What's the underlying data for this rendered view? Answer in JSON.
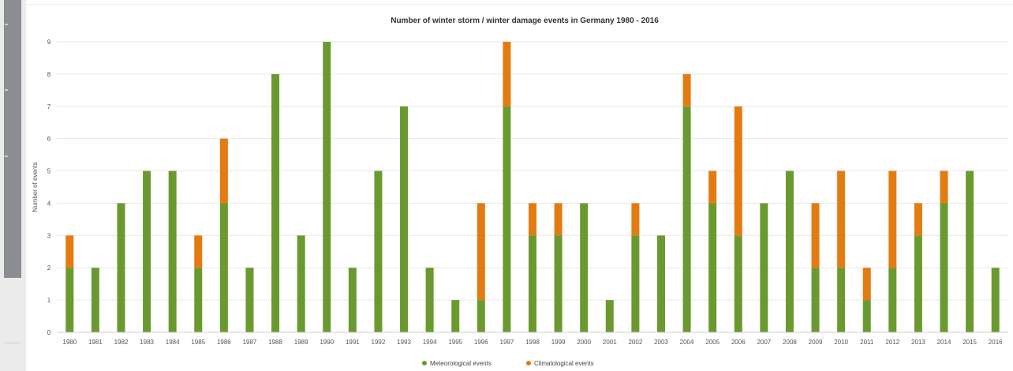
{
  "chart_data": {
    "type": "bar",
    "stacked": true,
    "title": "Number of winter storm / winter damage events in Germany 1980 - 2016",
    "xlabel": "",
    "ylabel": "Number of events",
    "ylim": [
      0,
      9
    ],
    "yticks": [
      0,
      1,
      2,
      3,
      4,
      5,
      6,
      7,
      8,
      9
    ],
    "grid": true,
    "legend_position": "bottom-center",
    "categories": [
      "1980",
      "1981",
      "1982",
      "1983",
      "1984",
      "1985",
      "1986",
      "1987",
      "1988",
      "1989",
      "1990",
      "1991",
      "1992",
      "1993",
      "1994",
      "1995",
      "1996",
      "1997",
      "1998",
      "1999",
      "2000",
      "2001",
      "2002",
      "2003",
      "2004",
      "2005",
      "2006",
      "2007",
      "2008",
      "2009",
      "2010",
      "2011",
      "2012",
      "2013",
      "2014",
      "2015",
      "2016"
    ],
    "series": [
      {
        "name": "Meteorological events",
        "color": "#6a9a2f",
        "values": [
          2,
          2,
          4,
          5,
          5,
          2,
          4,
          2,
          8,
          3,
          9,
          2,
          5,
          7,
          2,
          1,
          1,
          7,
          3,
          3,
          4,
          1,
          3,
          3,
          7,
          4,
          3,
          4,
          5,
          2,
          2,
          1,
          2,
          3,
          4,
          5,
          2
        ]
      },
      {
        "name": "Climatological events",
        "color": "#e37b12",
        "values": [
          1,
          0,
          0,
          0,
          0,
          1,
          2,
          0,
          0,
          0,
          0,
          0,
          0,
          0,
          0,
          0,
          3,
          2,
          1,
          1,
          0,
          0,
          1,
          0,
          1,
          1,
          4,
          0,
          0,
          2,
          3,
          1,
          3,
          1,
          1,
          0,
          0
        ]
      }
    ]
  }
}
